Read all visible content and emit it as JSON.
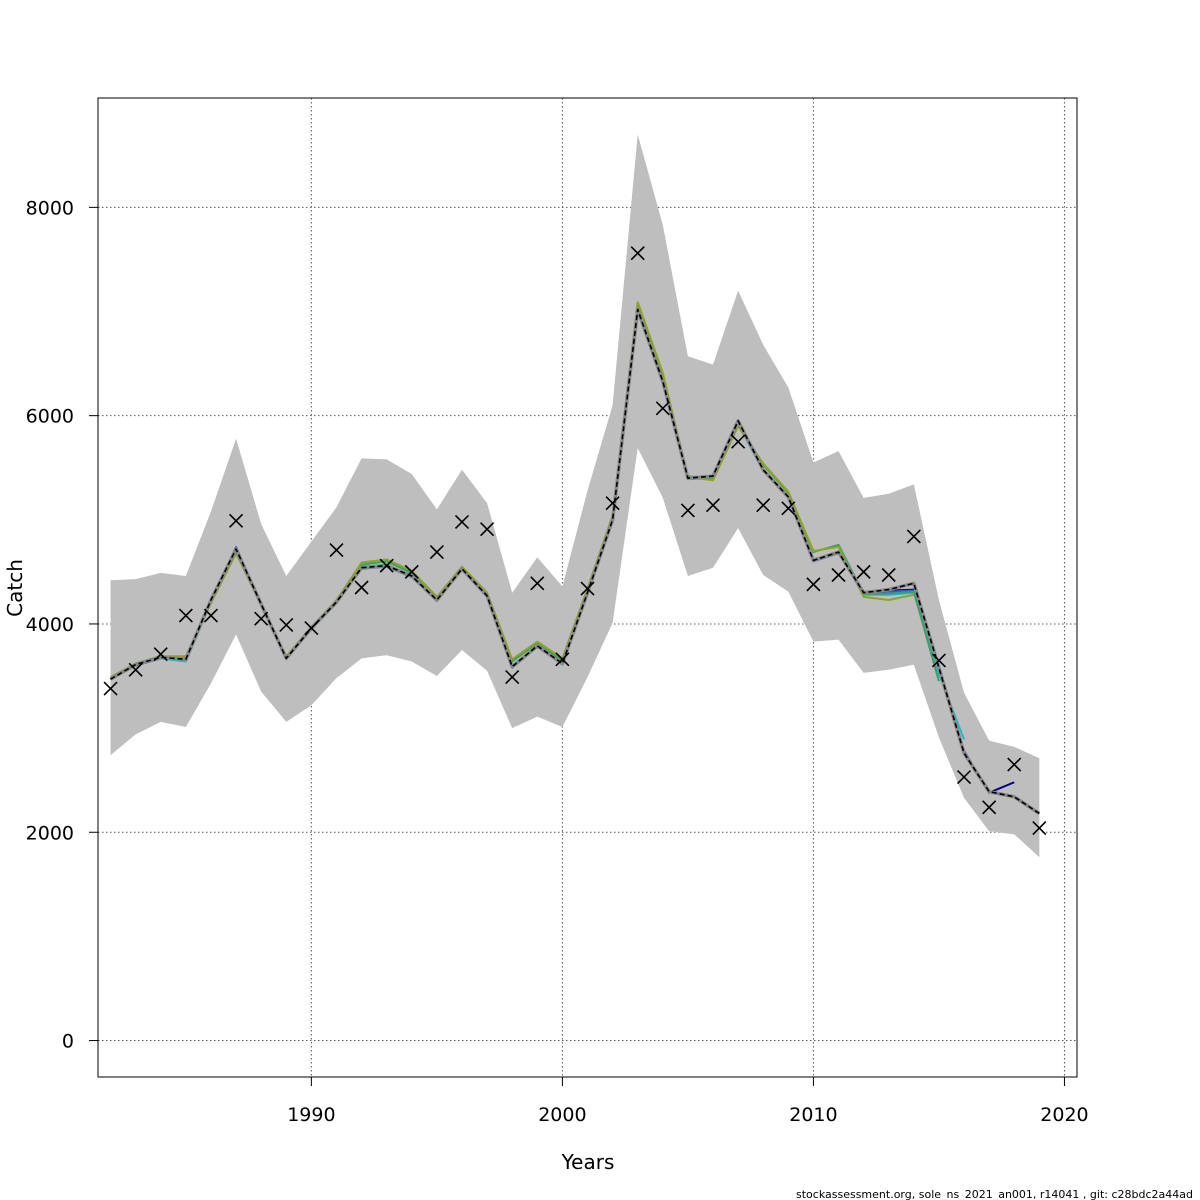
{
  "footer_text": "stockassessment.org, sole_ns_2021_an001, r14041 , git: c28bdc2a44ad",
  "chart_data": {
    "type": "line",
    "xlabel": "Years",
    "ylabel": "Catch",
    "xlim": [
      1981.5,
      2020.5
    ],
    "ylim": [
      -350,
      9050
    ],
    "xticks": [
      1990,
      2000,
      2010,
      2020
    ],
    "yticks": [
      0,
      2000,
      4000,
      6000,
      8000
    ],
    "grid": true,
    "band": {
      "x": [
        1982,
        1983,
        1984,
        1985,
        1986,
        1987,
        1988,
        1989,
        1990,
        1991,
        1992,
        1993,
        1994,
        1995,
        1996,
        1997,
        1998,
        1999,
        2000,
        2001,
        2002,
        2003,
        2004,
        2005,
        2006,
        2007,
        2008,
        2009,
        2010,
        2011,
        2012,
        2013,
        2014,
        2015,
        2016,
        2017,
        2018,
        2019
      ],
      "upper": [
        4420,
        4430,
        4490,
        4460,
        5080,
        5780,
        4960,
        4460,
        4790,
        5120,
        5590,
        5580,
        5440,
        5100,
        5480,
        5160,
        4300,
        4640,
        4360,
        5280,
        6100,
        8700,
        7830,
        6570,
        6490,
        7200,
        6680,
        6270,
        5550,
        5660,
        5210,
        5250,
        5340,
        4230,
        3340,
        2880,
        2820,
        2710
      ],
      "lower": [
        2740,
        2940,
        3060,
        3010,
        3430,
        3900,
        3350,
        3060,
        3220,
        3480,
        3670,
        3700,
        3640,
        3500,
        3750,
        3550,
        3000,
        3110,
        3010,
        3490,
        4010,
        5690,
        5210,
        4460,
        4540,
        4920,
        4470,
        4310,
        3830,
        3850,
        3530,
        3560,
        3610,
        2910,
        2330,
        2010,
        1980,
        1760
      ]
    },
    "series": [
      {
        "color": "#000080",
        "x": [
          1982,
          1983,
          1984,
          1985,
          1986,
          1987,
          1988,
          1989,
          1990,
          1991,
          1992,
          1993,
          1994,
          1995,
          1996,
          1997,
          1998,
          1999,
          2000,
          2001,
          2002,
          2003,
          2004,
          2005,
          2006,
          2007,
          2008,
          2009,
          2010,
          2011,
          2012,
          2013,
          2014,
          2015,
          2016,
          2017,
          2018
        ],
        "values": [
          3470,
          3610,
          3680,
          3660,
          4230,
          4720,
          4190,
          3670,
          3960,
          4210,
          4540,
          4560,
          4460,
          4230,
          4530,
          4270,
          3590,
          3790,
          3620,
          4300,
          5000,
          7020,
          6330,
          5400,
          5420,
          5950,
          5480,
          5220,
          4610,
          4690,
          4300,
          4320,
          4330,
          3590,
          2780,
          2380,
          2480
        ]
      },
      {
        "color": "#2a63c8",
        "x": [
          1982,
          1983,
          1984,
          1985,
          1986,
          1987,
          1988,
          1989,
          1990,
          1991,
          1992,
          1993,
          1994,
          1995,
          1996,
          1997,
          1998,
          1999,
          2000,
          2001,
          2002,
          2003,
          2004,
          2005,
          2006,
          2007,
          2008,
          2009,
          2010,
          2011,
          2012,
          2013,
          2014,
          2015,
          2016,
          2017
        ],
        "values": [
          3470,
          3600,
          3670,
          3650,
          4220,
          4740,
          4190,
          3670,
          3950,
          4210,
          4530,
          4550,
          4450,
          4220,
          4520,
          4260,
          3580,
          3780,
          3610,
          4290,
          4990,
          7000,
          6310,
          5390,
          5410,
          5940,
          5470,
          5210,
          4600,
          4680,
          4290,
          4310,
          4320,
          3580,
          2770,
          2390
        ]
      },
      {
        "color": "#2fb0c9",
        "x": [
          1982,
          1983,
          1984,
          1985,
          1986,
          1987,
          1988,
          1989,
          1990,
          1991,
          1992,
          1993,
          1994,
          1995,
          1996,
          1997,
          1998,
          1999,
          2000,
          2001,
          2002,
          2003,
          2004,
          2005,
          2006,
          2007,
          2008,
          2009,
          2010,
          2011,
          2012,
          2013,
          2014,
          2015,
          2016
        ],
        "values": [
          3480,
          3610,
          3670,
          3640,
          4210,
          4730,
          4180,
          3660,
          3950,
          4200,
          4550,
          4570,
          4460,
          4230,
          4530,
          4260,
          3590,
          3790,
          3610,
          4290,
          4990,
          7010,
          6320,
          5390,
          5400,
          5920,
          5470,
          5220,
          4620,
          4690,
          4280,
          4280,
          4300,
          3520,
          2890
        ]
      },
      {
        "color": "#3aa068",
        "x": [
          1982,
          1983,
          1984,
          1985,
          1986,
          1987,
          1988,
          1989,
          1990,
          1991,
          1992,
          1993,
          1994,
          1995,
          1996,
          1997,
          1998,
          1999,
          2000,
          2001,
          2002,
          2003,
          2004,
          2005,
          2006,
          2007,
          2008,
          2009,
          2010,
          2011,
          2012,
          2013,
          2014,
          2015
        ],
        "values": [
          3480,
          3620,
          3690,
          3680,
          4210,
          4700,
          4190,
          3680,
          3960,
          4220,
          4570,
          4600,
          4490,
          4250,
          4540,
          4290,
          3640,
          3820,
          3650,
          4330,
          5030,
          7060,
          6380,
          5420,
          5390,
          5920,
          5530,
          5260,
          4690,
          4760,
          4290,
          4290,
          4310,
          3450
        ]
      },
      {
        "color": "#8aa624",
        "x": [
          1982,
          1983,
          1984,
          1985,
          1986,
          1987,
          1988,
          1989,
          1990,
          1991,
          1992,
          1993,
          1994,
          1995,
          1996,
          1997,
          1998,
          1999,
          2000,
          2001,
          2002,
          2003,
          2004,
          2005,
          2006,
          2007,
          2008,
          2009,
          2010,
          2011,
          2012,
          2013,
          2014
        ],
        "values": [
          3490,
          3620,
          3690,
          3690,
          4200,
          4680,
          4180,
          3690,
          3970,
          4230,
          4590,
          4620,
          4510,
          4260,
          4550,
          4300,
          3660,
          3830,
          3670,
          4340,
          5040,
          7090,
          6410,
          5410,
          5380,
          5900,
          5540,
          5270,
          4700,
          4740,
          4260,
          4230,
          4280
        ]
      }
    ],
    "reference_line": {
      "style": "dashed",
      "color": "#000000",
      "x": [
        1982,
        1983,
        1984,
        1985,
        1986,
        1987,
        1988,
        1989,
        1990,
        1991,
        1992,
        1993,
        1994,
        1995,
        1996,
        1997,
        1998,
        1999,
        2000,
        2001,
        2002,
        2003,
        2004,
        2005,
        2006,
        2007,
        2008,
        2009,
        2010,
        2011,
        2012,
        2013,
        2014,
        2015,
        2016,
        2017,
        2018,
        2019
      ],
      "values": [
        3470,
        3610,
        3680,
        3660,
        4230,
        4720,
        4190,
        3670,
        3960,
        4210,
        4540,
        4560,
        4460,
        4230,
        4530,
        4270,
        3590,
        3790,
        3620,
        4300,
        5000,
        7020,
        6330,
        5400,
        5420,
        5950,
        5480,
        5220,
        4610,
        4690,
        4300,
        4330,
        4390,
        3580,
        2760,
        2390,
        2340,
        2180
      ]
    },
    "observed": {
      "marker": "x",
      "x": [
        1982,
        1983,
        1984,
        1985,
        1986,
        1987,
        1988,
        1989,
        1990,
        1991,
        1992,
        1993,
        1994,
        1995,
        1996,
        1997,
        1998,
        1999,
        2000,
        2001,
        2002,
        2003,
        2004,
        2005,
        2006,
        2007,
        2008,
        2009,
        2010,
        2011,
        2012,
        2013,
        2014,
        2015,
        2016,
        2017,
        2018,
        2019
      ],
      "values": [
        3380,
        3560,
        3710,
        4080,
        4080,
        4990,
        4050,
        3990,
        3960,
        4710,
        4350,
        4560,
        4500,
        4690,
        4980,
        4910,
        3490,
        4390,
        3660,
        4340,
        5160,
        7560,
        6070,
        5090,
        5140,
        5750,
        5140,
        5110,
        4380,
        4470,
        4500,
        4470,
        4840,
        3650,
        2530,
        2240,
        2650,
        2040
      ]
    }
  }
}
